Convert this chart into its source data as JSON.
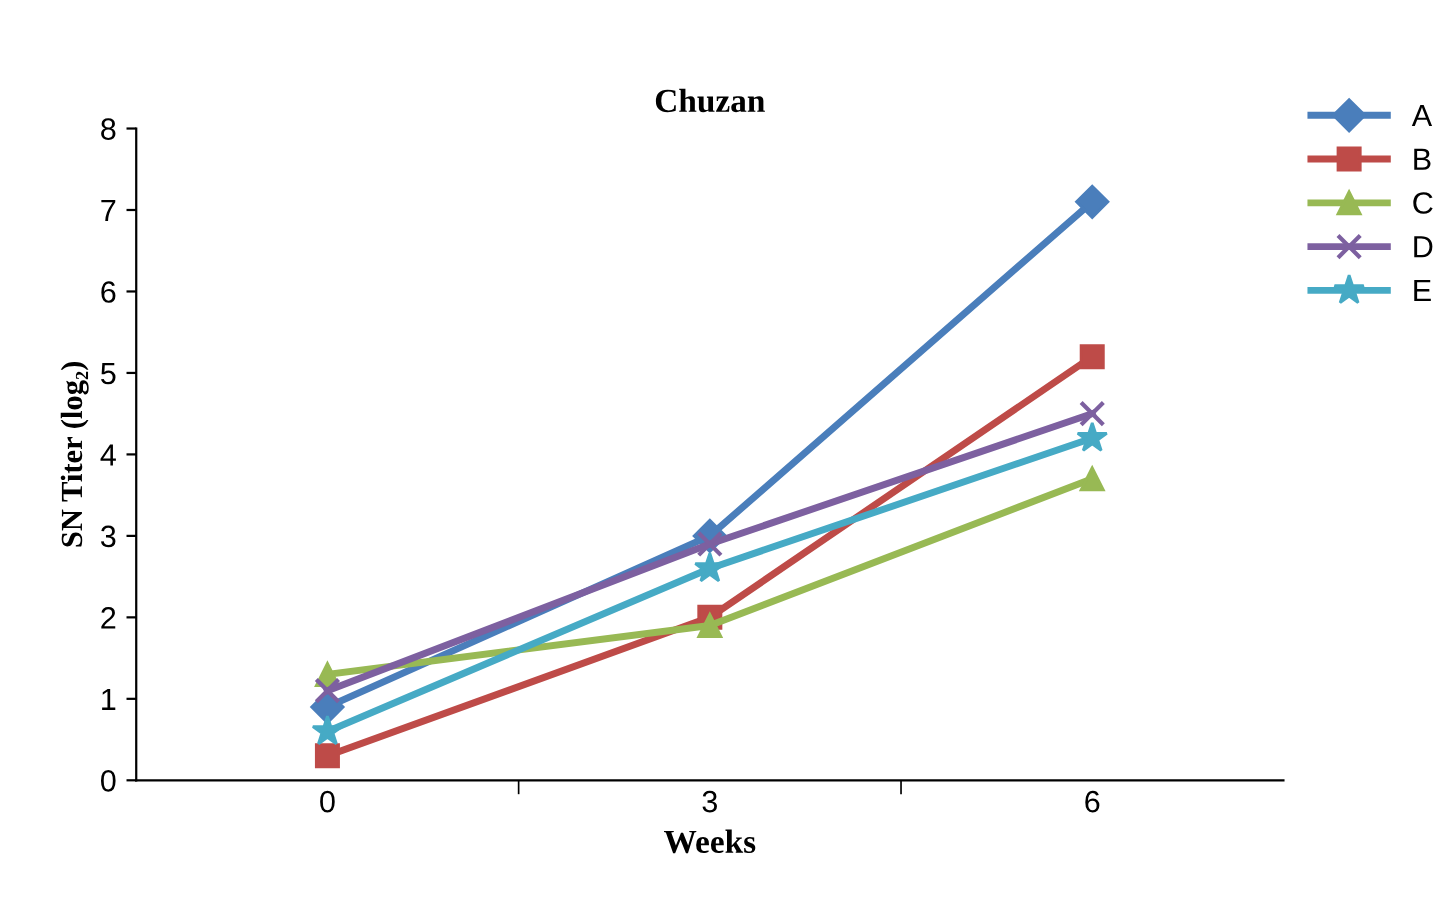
{
  "chart_data": {
    "type": "line",
    "title": "Chuzan",
    "xlabel": "Weeks",
    "ylabel": "SN Titer (log₂)",
    "categories": [
      "0",
      "3",
      "6"
    ],
    "series": [
      {
        "name": "A",
        "color": "#4a7ebb",
        "marker": "diamond",
        "values": [
          0.9,
          3.0,
          7.1
        ]
      },
      {
        "name": "B",
        "color": "#be4b48",
        "marker": "square",
        "values": [
          0.3,
          2.0,
          5.2
        ]
      },
      {
        "name": "C",
        "color": "#98b954",
        "marker": "triangle",
        "values": [
          1.3,
          1.9,
          3.7
        ]
      },
      {
        "name": "D",
        "color": "#7d60a0",
        "marker": "cross",
        "values": [
          1.1,
          2.9,
          4.5
        ]
      },
      {
        "name": "E",
        "color": "#46aac5",
        "marker": "star",
        "values": [
          0.6,
          2.6,
          4.2
        ]
      }
    ],
    "ylim": [
      0,
      8
    ],
    "yticks": [
      0,
      1,
      2,
      3,
      4,
      5,
      6,
      7,
      8
    ],
    "grid": false,
    "legend": "top right",
    "line_style": "solid"
  }
}
